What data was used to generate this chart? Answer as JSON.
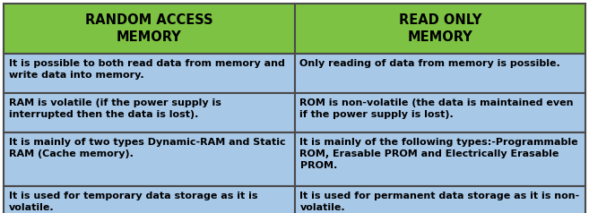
{
  "col1_header": "RANDOM ACCESS\nMEMORY",
  "col2_header": "READ ONLY\nMEMORY",
  "header_bg": "#7DC242",
  "border_color": "#4a4a4a",
  "data_bg": "#A8C8E8",
  "rows": [
    [
      "It is possible to both read data from memory and\nwrite data into memory.",
      "Only reading of data from memory is possible."
    ],
    [
      "RAM is volatile (if the power supply is\ninterrupted then the data is lost).",
      "ROM is non-volatile (the data is maintained even\nif the power supply is lost)."
    ],
    [
      "It is mainly of two types Dynamic-RAM and Static\nRAM (Cache memory).",
      "It is mainly of the following types:-Programmable\nROM, Erasable PROM and Electrically Erasable\nPROM."
    ],
    [
      "It is used for temporary data storage as it is\nvolatile.",
      "It is used for permanent data storage as it is non-\nvolatile."
    ]
  ],
  "figwidth": 6.57,
  "figheight": 2.38,
  "dpi": 100
}
